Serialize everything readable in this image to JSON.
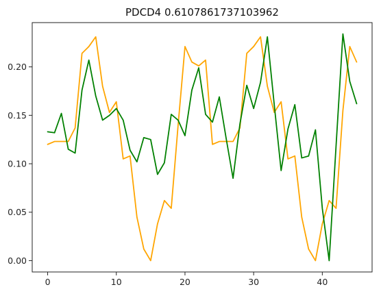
{
  "chart_data": {
    "type": "line",
    "title": "PDCD4 0.6107861737103962",
    "xlabel": "",
    "ylabel": "",
    "xlim": [
      -2.25,
      47.25
    ],
    "ylim": [
      -0.0117,
      0.2457
    ],
    "x_ticks": [
      0,
      10,
      20,
      30,
      40
    ],
    "x_tick_labels": [
      "0",
      "10",
      "20",
      "30",
      "40"
    ],
    "y_ticks": [
      0.0,
      0.05,
      0.1,
      0.15,
      0.2
    ],
    "y_tick_labels": [
      "0.00",
      "0.05",
      "0.10",
      "0.15",
      "0.20"
    ],
    "grid": false,
    "x": [
      0,
      1,
      2,
      3,
      4,
      5,
      6,
      7,
      8,
      9,
      10,
      11,
      12,
      13,
      14,
      15,
      16,
      17,
      18,
      19,
      20,
      21,
      22,
      23,
      24,
      25,
      26,
      27,
      28,
      29,
      30,
      31,
      32,
      33,
      34,
      35,
      36,
      37,
      38,
      39,
      40,
      41,
      42,
      43,
      44,
      45
    ],
    "series": [
      {
        "color": "#ffa500",
        "values": [
          0.12,
          0.123,
          0.123,
          0.123,
          0.137,
          0.214,
          0.221,
          0.231,
          0.18,
          0.153,
          0.164,
          0.105,
          0.108,
          0.045,
          0.012,
          0.0,
          0.038,
          0.062,
          0.054,
          0.14,
          0.221,
          0.205,
          0.201,
          0.207,
          0.12,
          0.123,
          0.123,
          0.123,
          0.137,
          0.214,
          0.221,
          0.231,
          0.18,
          0.153,
          0.164,
          0.105,
          0.108,
          0.045,
          0.012,
          0.0,
          0.038,
          0.062,
          0.054,
          0.155,
          0.221,
          0.205
        ]
      },
      {
        "color": "#008000",
        "values": [
          0.133,
          0.132,
          0.152,
          0.115,
          0.111,
          0.176,
          0.207,
          0.17,
          0.145,
          0.15,
          0.157,
          0.145,
          0.114,
          0.102,
          0.127,
          0.125,
          0.089,
          0.101,
          0.151,
          0.145,
          0.129,
          0.176,
          0.199,
          0.151,
          0.143,
          0.169,
          0.126,
          0.085,
          0.141,
          0.181,
          0.157,
          0.184,
          0.231,
          0.161,
          0.093,
          0.136,
          0.161,
          0.106,
          0.108,
          0.135,
          0.054,
          0.0,
          0.118,
          0.234,
          0.185,
          0.162
        ]
      }
    ]
  }
}
